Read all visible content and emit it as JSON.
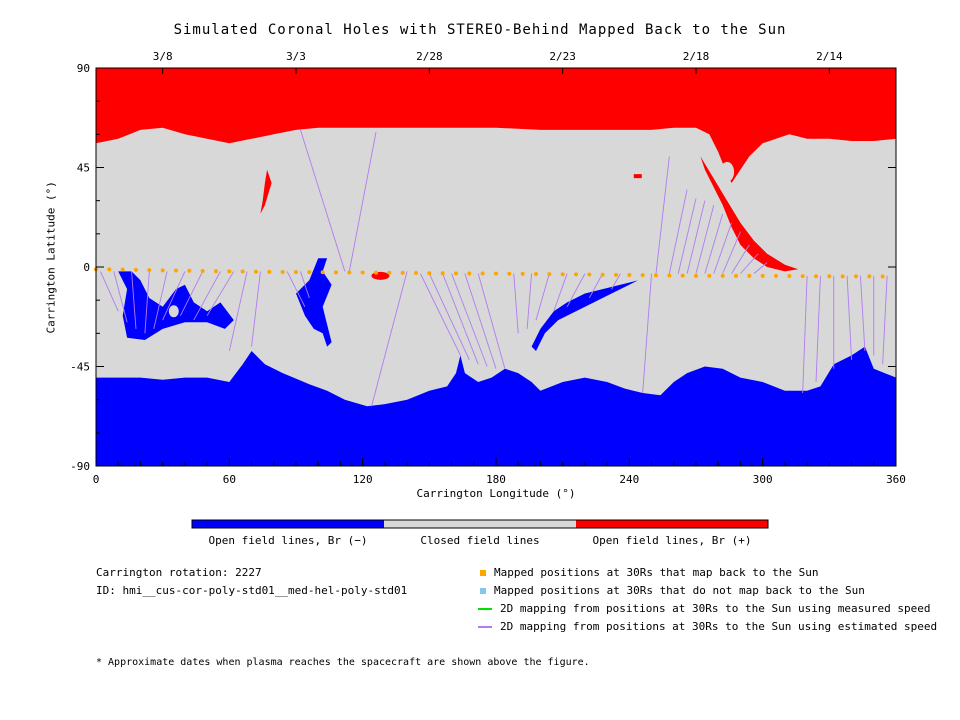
{
  "chart_data": {
    "type": "heatmap",
    "title": "Simulated Coronal Holes with STEREO-Behind Mapped Back to the Sun",
    "xlabel": "Carrington Longitude (°)",
    "ylabel": "Carrington Latitude (°)",
    "xlim": [
      0,
      360
    ],
    "ylim": [
      -90,
      90
    ],
    "x_ticks": [
      0,
      60,
      120,
      180,
      240,
      300,
      360
    ],
    "y_ticks": [
      90,
      45,
      0,
      -45,
      -90
    ],
    "y_tick_labels": [
      "90",
      "45",
      "0",
      "-45",
      "-90"
    ],
    "top_axis_dates": [
      {
        "label": "3/8",
        "x": 30
      },
      {
        "label": "3/3",
        "x": 90
      },
      {
        "label": "2/28",
        "x": 150
      },
      {
        "label": "2/23",
        "x": 210
      },
      {
        "label": "2/18",
        "x": 270
      },
      {
        "label": "2/14",
        "x": 330
      }
    ],
    "colorbar": [
      {
        "label": "Open field lines, Br (−)",
        "color": "#0000ff"
      },
      {
        "label": "Closed field lines",
        "color": "#d8d8d8"
      },
      {
        "label": "Open field lines, Br (+)",
        "color": "#ff0000"
      }
    ],
    "mapped_track": {
      "name": "Mapped positions at 30Rs that map back to the Sun",
      "color": "#ffa500",
      "points": [
        [
          0,
          -1
        ],
        [
          30,
          -1.5
        ],
        [
          60,
          -2
        ],
        [
          90,
          -2.3
        ],
        [
          120,
          -2.5
        ],
        [
          150,
          -2.8
        ],
        [
          180,
          -3
        ],
        [
          210,
          -3.3
        ],
        [
          240,
          -3.6
        ],
        [
          270,
          -4
        ],
        [
          300,
          -4
        ],
        [
          330,
          -4.2
        ],
        [
          360,
          -4.3
        ]
      ]
    },
    "mapping_lines_estimated": [
      {
        "from": [
          2,
          -2
        ],
        "to": [
          10,
          -20
        ]
      },
      {
        "from": [
          8,
          -2
        ],
        "to": [
          14,
          -25
        ]
      },
      {
        "from": [
          16,
          -2
        ],
        "to": [
          18,
          -28
        ]
      },
      {
        "from": [
          24,
          -2
        ],
        "to": [
          22,
          -30
        ]
      },
      {
        "from": [
          32,
          -2
        ],
        "to": [
          26,
          -28
        ]
      },
      {
        "from": [
          40,
          -2
        ],
        "to": [
          30,
          -24
        ]
      },
      {
        "from": [
          48,
          -2
        ],
        "to": [
          38,
          -22
        ]
      },
      {
        "from": [
          56,
          -2
        ],
        "to": [
          44,
          -24
        ]
      },
      {
        "from": [
          62,
          -2
        ],
        "to": [
          50,
          -22
        ]
      },
      {
        "from": [
          68,
          -2
        ],
        "to": [
          60,
          -38
        ]
      },
      {
        "from": [
          74,
          -2
        ],
        "to": [
          70,
          -36
        ]
      },
      {
        "from": [
          86,
          -2
        ],
        "to": [
          94,
          -18
        ]
      },
      {
        "from": [
          92,
          -2
        ],
        "to": [
          96,
          -14
        ]
      },
      {
        "from": [
          112,
          -2
        ],
        "to": [
          92,
          62
        ]
      },
      {
        "from": [
          114,
          -2
        ],
        "to": [
          126,
          61
        ]
      },
      {
        "from": [
          140,
          -2
        ],
        "to": [
          124,
          -63
        ]
      },
      {
        "from": [
          146,
          -3
        ],
        "to": [
          164,
          -40
        ]
      },
      {
        "from": [
          150,
          -3
        ],
        "to": [
          168,
          -42
        ]
      },
      {
        "from": [
          156,
          -3
        ],
        "to": [
          172,
          -44
        ]
      },
      {
        "from": [
          160,
          -3
        ],
        "to": [
          176,
          -45
        ]
      },
      {
        "from": [
          166,
          -3
        ],
        "to": [
          180,
          -46
        ]
      },
      {
        "from": [
          172,
          -3
        ],
        "to": [
          184,
          -46
        ]
      },
      {
        "from": [
          188,
          -3
        ],
        "to": [
          190,
          -30
        ]
      },
      {
        "from": [
          196,
          -3
        ],
        "to": [
          194,
          -28
        ]
      },
      {
        "from": [
          204,
          -3
        ],
        "to": [
          198,
          -24
        ]
      },
      {
        "from": [
          212,
          -3
        ],
        "to": [
          206,
          -20
        ]
      },
      {
        "from": [
          220,
          -3
        ],
        "to": [
          212,
          -18
        ]
      },
      {
        "from": [
          228,
          -3
        ],
        "to": [
          222,
          -14
        ]
      },
      {
        "from": [
          236,
          -3
        ],
        "to": [
          232,
          -10
        ]
      },
      {
        "from": [
          250,
          -3
        ],
        "to": [
          246,
          -57
        ]
      },
      {
        "from": [
          252,
          -3
        ],
        "to": [
          258,
          50
        ]
      },
      {
        "from": [
          258,
          -3
        ],
        "to": [
          266,
          35
        ]
      },
      {
        "from": [
          262,
          -3
        ],
        "to": [
          270,
          31
        ]
      },
      {
        "from": [
          266,
          -3
        ],
        "to": [
          274,
          30
        ]
      },
      {
        "from": [
          270,
          -3
        ],
        "to": [
          278,
          28
        ]
      },
      {
        "from": [
          274,
          -3
        ],
        "to": [
          282,
          24
        ]
      },
      {
        "from": [
          278,
          -3
        ],
        "to": [
          286,
          20
        ]
      },
      {
        "from": [
          282,
          -3
        ],
        "to": [
          290,
          16
        ]
      },
      {
        "from": [
          286,
          -3
        ],
        "to": [
          294,
          10
        ]
      },
      {
        "from": [
          290,
          -3
        ],
        "to": [
          298,
          6
        ]
      },
      {
        "from": [
          296,
          -3
        ],
        "to": [
          302,
          2
        ]
      },
      {
        "from": [
          320,
          -4
        ],
        "to": [
          318,
          -57
        ]
      },
      {
        "from": [
          326,
          -4
        ],
        "to": [
          324,
          -52
        ]
      },
      {
        "from": [
          332,
          -4
        ],
        "to": [
          332,
          -46
        ]
      },
      {
        "from": [
          338,
          -4
        ],
        "to": [
          340,
          -42
        ]
      },
      {
        "from": [
          344,
          -4
        ],
        "to": [
          346,
          -38
        ]
      },
      {
        "from": [
          350,
          -4
        ],
        "to": [
          350,
          -40
        ]
      },
      {
        "from": [
          356,
          -4
        ],
        "to": [
          354,
          -44
        ]
      }
    ],
    "grid": false
  },
  "info": {
    "rotation": "Carrington rotation: 2227",
    "id": "ID: hmi__cus-cor-poly-std01__med-hel-poly-std01"
  },
  "legend": [
    {
      "label": "Mapped positions at 30Rs that map back to the Sun",
      "color": "#ffa500",
      "kind": "dot"
    },
    {
      "label": "Mapped positions at 30Rs that do not map back to the Sun",
      "color": "#87c4f0",
      "kind": "dot"
    },
    {
      "label": "2D mapping from positions at 30Rs to the Sun using measured speed",
      "color": "#00e000",
      "kind": "line"
    },
    {
      "label": "2D mapping from positions at 30Rs to the Sun using estimated speed",
      "color": "#b07cf0",
      "kind": "line"
    }
  ],
  "footnote": "* Approximate dates when plasma reaches the spacecraft are shown above the figure."
}
